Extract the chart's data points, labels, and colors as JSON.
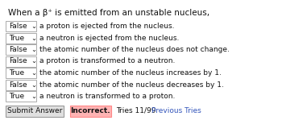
{
  "title": "When a β⁺ is emitted from an unstable nucleus,",
  "rows": [
    {
      "label": "False",
      "text": "a proton is ejected from the nucleus."
    },
    {
      "label": "True",
      "text": "a neutron is ejected from the nucleus."
    },
    {
      "label": "False",
      "text": "the atomic number of the nucleus does not change."
    },
    {
      "label": "False",
      "text": "a proton is transformed to a neutron."
    },
    {
      "label": "True",
      "text": "the atomic number of the nucleus increases by 1."
    },
    {
      "label": "False",
      "text": "the atomic number of the nucleus decreases by 1."
    },
    {
      "label": "True",
      "text": "a neutron is transformed to a proton."
    }
  ],
  "submit_label": "Submit Answer",
  "incorrect_label": "Incorrect.",
  "tries_label": "Tries 11/99",
  "previous_label": "Previous Tries",
  "bg_color": "#ffffff",
  "box_bg": "#ffffff",
  "box_border": "#aaaaaa",
  "incorrect_bg": "#ffb3b3",
  "incorrect_border": "#ff8888",
  "link_color": "#3355bb",
  "text_color": "#111111",
  "submit_bg": "#e0e0e0",
  "submit_border": "#999999"
}
